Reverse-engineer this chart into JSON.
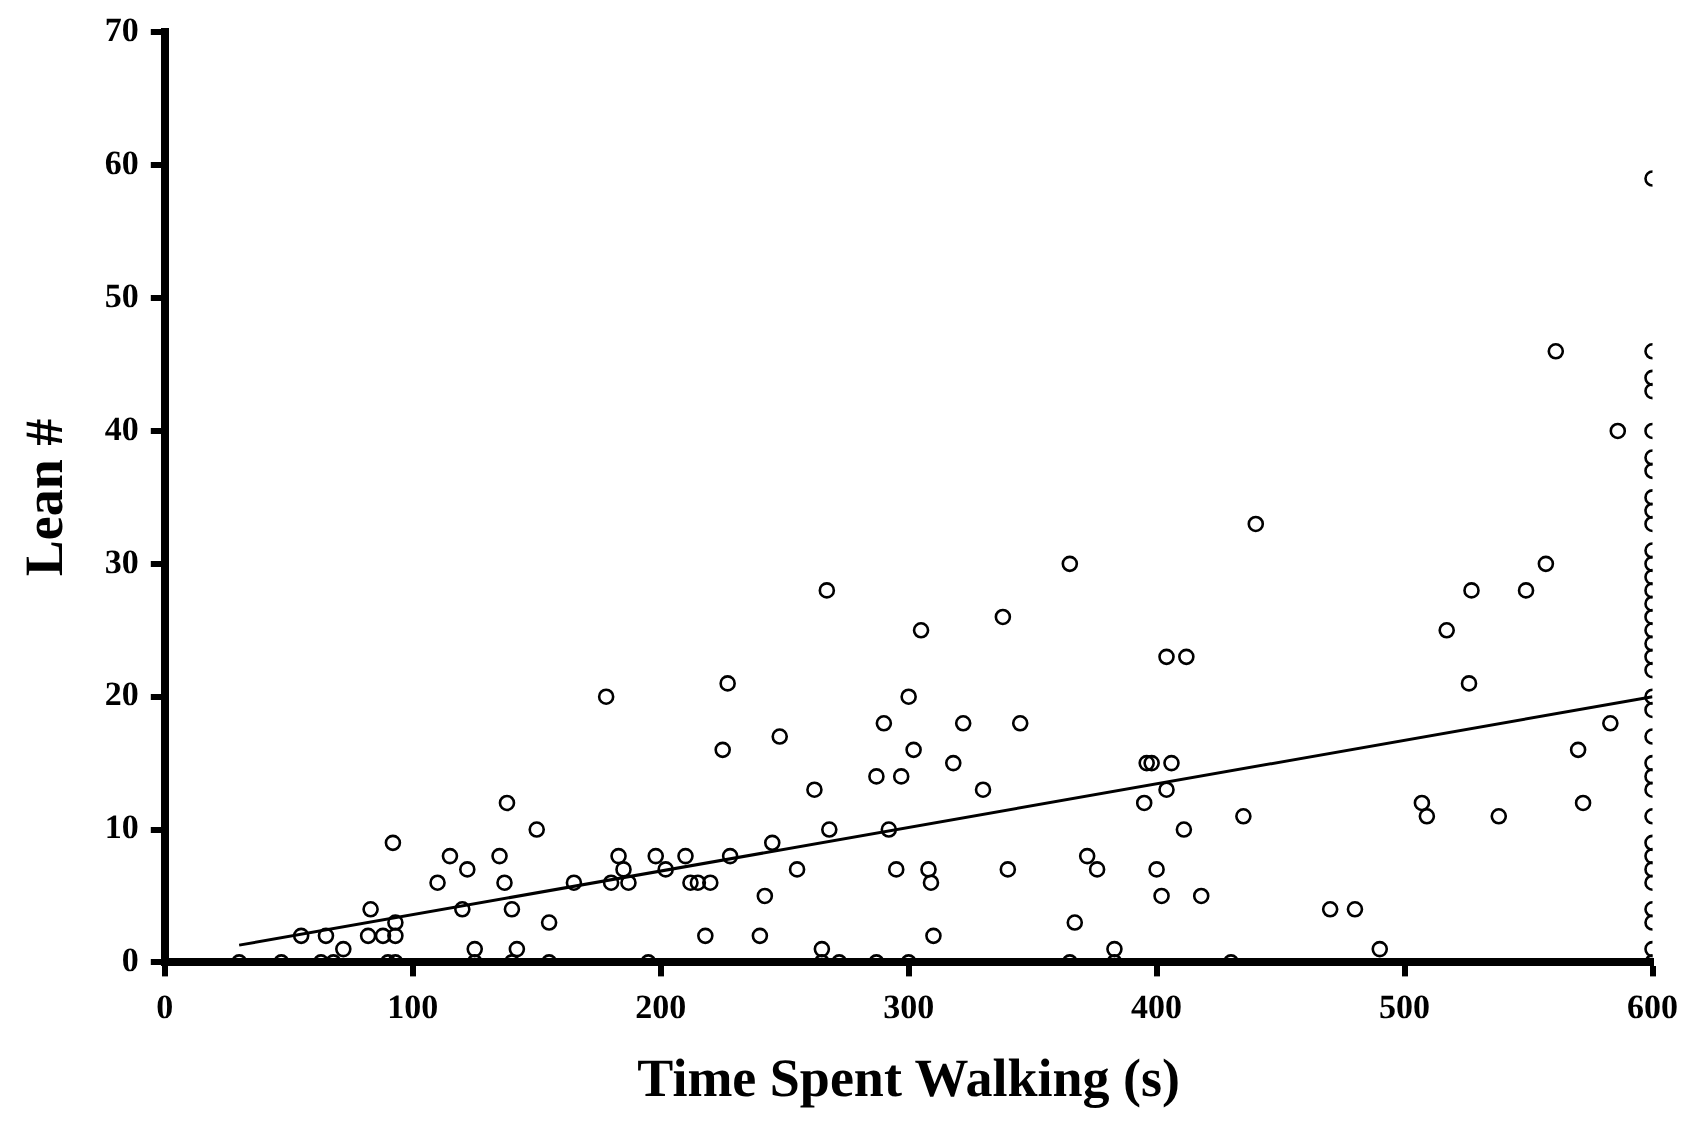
{
  "chart_data": {
    "type": "scatter",
    "xlabel": "Time Spent Walking (s)",
    "ylabel": "Lean #",
    "xlim": [
      0,
      600
    ],
    "xticks": [
      0,
      100,
      200,
      300,
      400,
      500,
      600
    ],
    "ylim": [
      0,
      70
    ],
    "yticks": [
      0,
      10,
      20,
      30,
      40,
      50,
      60,
      70
    ],
    "grid": false,
    "legend": false,
    "marker": "circle",
    "series": [
      {
        "type": "scatter",
        "color": "#000000",
        "x": [
          30,
          47,
          63,
          68,
          90,
          93,
          125,
          140,
          155,
          195,
          265,
          272,
          287,
          300,
          365,
          383,
          430,
          600,
          55,
          65,
          72,
          82,
          83,
          88,
          92,
          93,
          93,
          110,
          115,
          120,
          122,
          125,
          135,
          137,
          138,
          140,
          142,
          150,
          155,
          165,
          178,
          180,
          183,
          185,
          187,
          198,
          202,
          210,
          212,
          215,
          218,
          220,
          225,
          227,
          228,
          240,
          242,
          245,
          248,
          255,
          262,
          265,
          267,
          268,
          287,
          290,
          292,
          295,
          297,
          300,
          302,
          305,
          308,
          309,
          310,
          318,
          322,
          330,
          338,
          340,
          345,
          365,
          367,
          372,
          376,
          383,
          395,
          396,
          398,
          400,
          402,
          404,
          404,
          406,
          411,
          412,
          418,
          435,
          440,
          470,
          480,
          490,
          507,
          509,
          517,
          526,
          527,
          538,
          549,
          557,
          561,
          570,
          572,
          583,
          586,
          600,
          600,
          600,
          600,
          600,
          600,
          600,
          600,
          600,
          600,
          600,
          600,
          600,
          600,
          600,
          600,
          600,
          600,
          600,
          600,
          600,
          600,
          600,
          600,
          600,
          600,
          600,
          600,
          600,
          600,
          600,
          600,
          600,
          600
        ],
        "values": [
          0,
          0,
          0,
          0,
          0,
          0,
          0,
          0,
          0,
          0,
          0,
          0,
          0,
          0,
          0,
          0,
          0,
          0,
          2,
          2,
          1,
          2,
          4,
          2,
          9,
          2,
          3,
          6,
          8,
          4,
          7,
          1,
          8,
          6,
          12,
          4,
          1,
          10,
          3,
          6,
          20,
          6,
          8,
          7,
          6,
          8,
          7,
          8,
          6,
          6,
          2,
          6,
          16,
          21,
          8,
          2,
          5,
          9,
          17,
          7,
          13,
          1,
          28,
          10,
          14,
          18,
          10,
          7,
          14,
          20,
          16,
          25,
          7,
          6,
          2,
          15,
          18,
          13,
          26,
          7,
          18,
          30,
          3,
          8,
          7,
          1,
          12,
          15,
          15,
          7,
          5,
          23,
          13,
          15,
          10,
          23,
          5,
          11,
          33,
          4,
          4,
          1,
          12,
          11,
          25,
          21,
          28,
          11,
          28,
          30,
          46,
          16,
          12,
          18,
          40,
          59,
          46,
          44,
          43,
          40,
          38,
          37,
          35,
          34,
          33,
          31,
          30,
          29,
          28,
          27,
          26,
          25,
          24,
          23,
          22,
          20,
          19,
          17,
          15,
          14,
          13,
          11,
          9,
          8,
          7,
          6,
          4,
          3,
          1
        ]
      },
      {
        "type": "line",
        "color": "#000000",
        "marker": "none",
        "line_style": "solid",
        "x": [
          30,
          600
        ],
        "values": [
          1.3,
          20
        ]
      }
    ]
  }
}
